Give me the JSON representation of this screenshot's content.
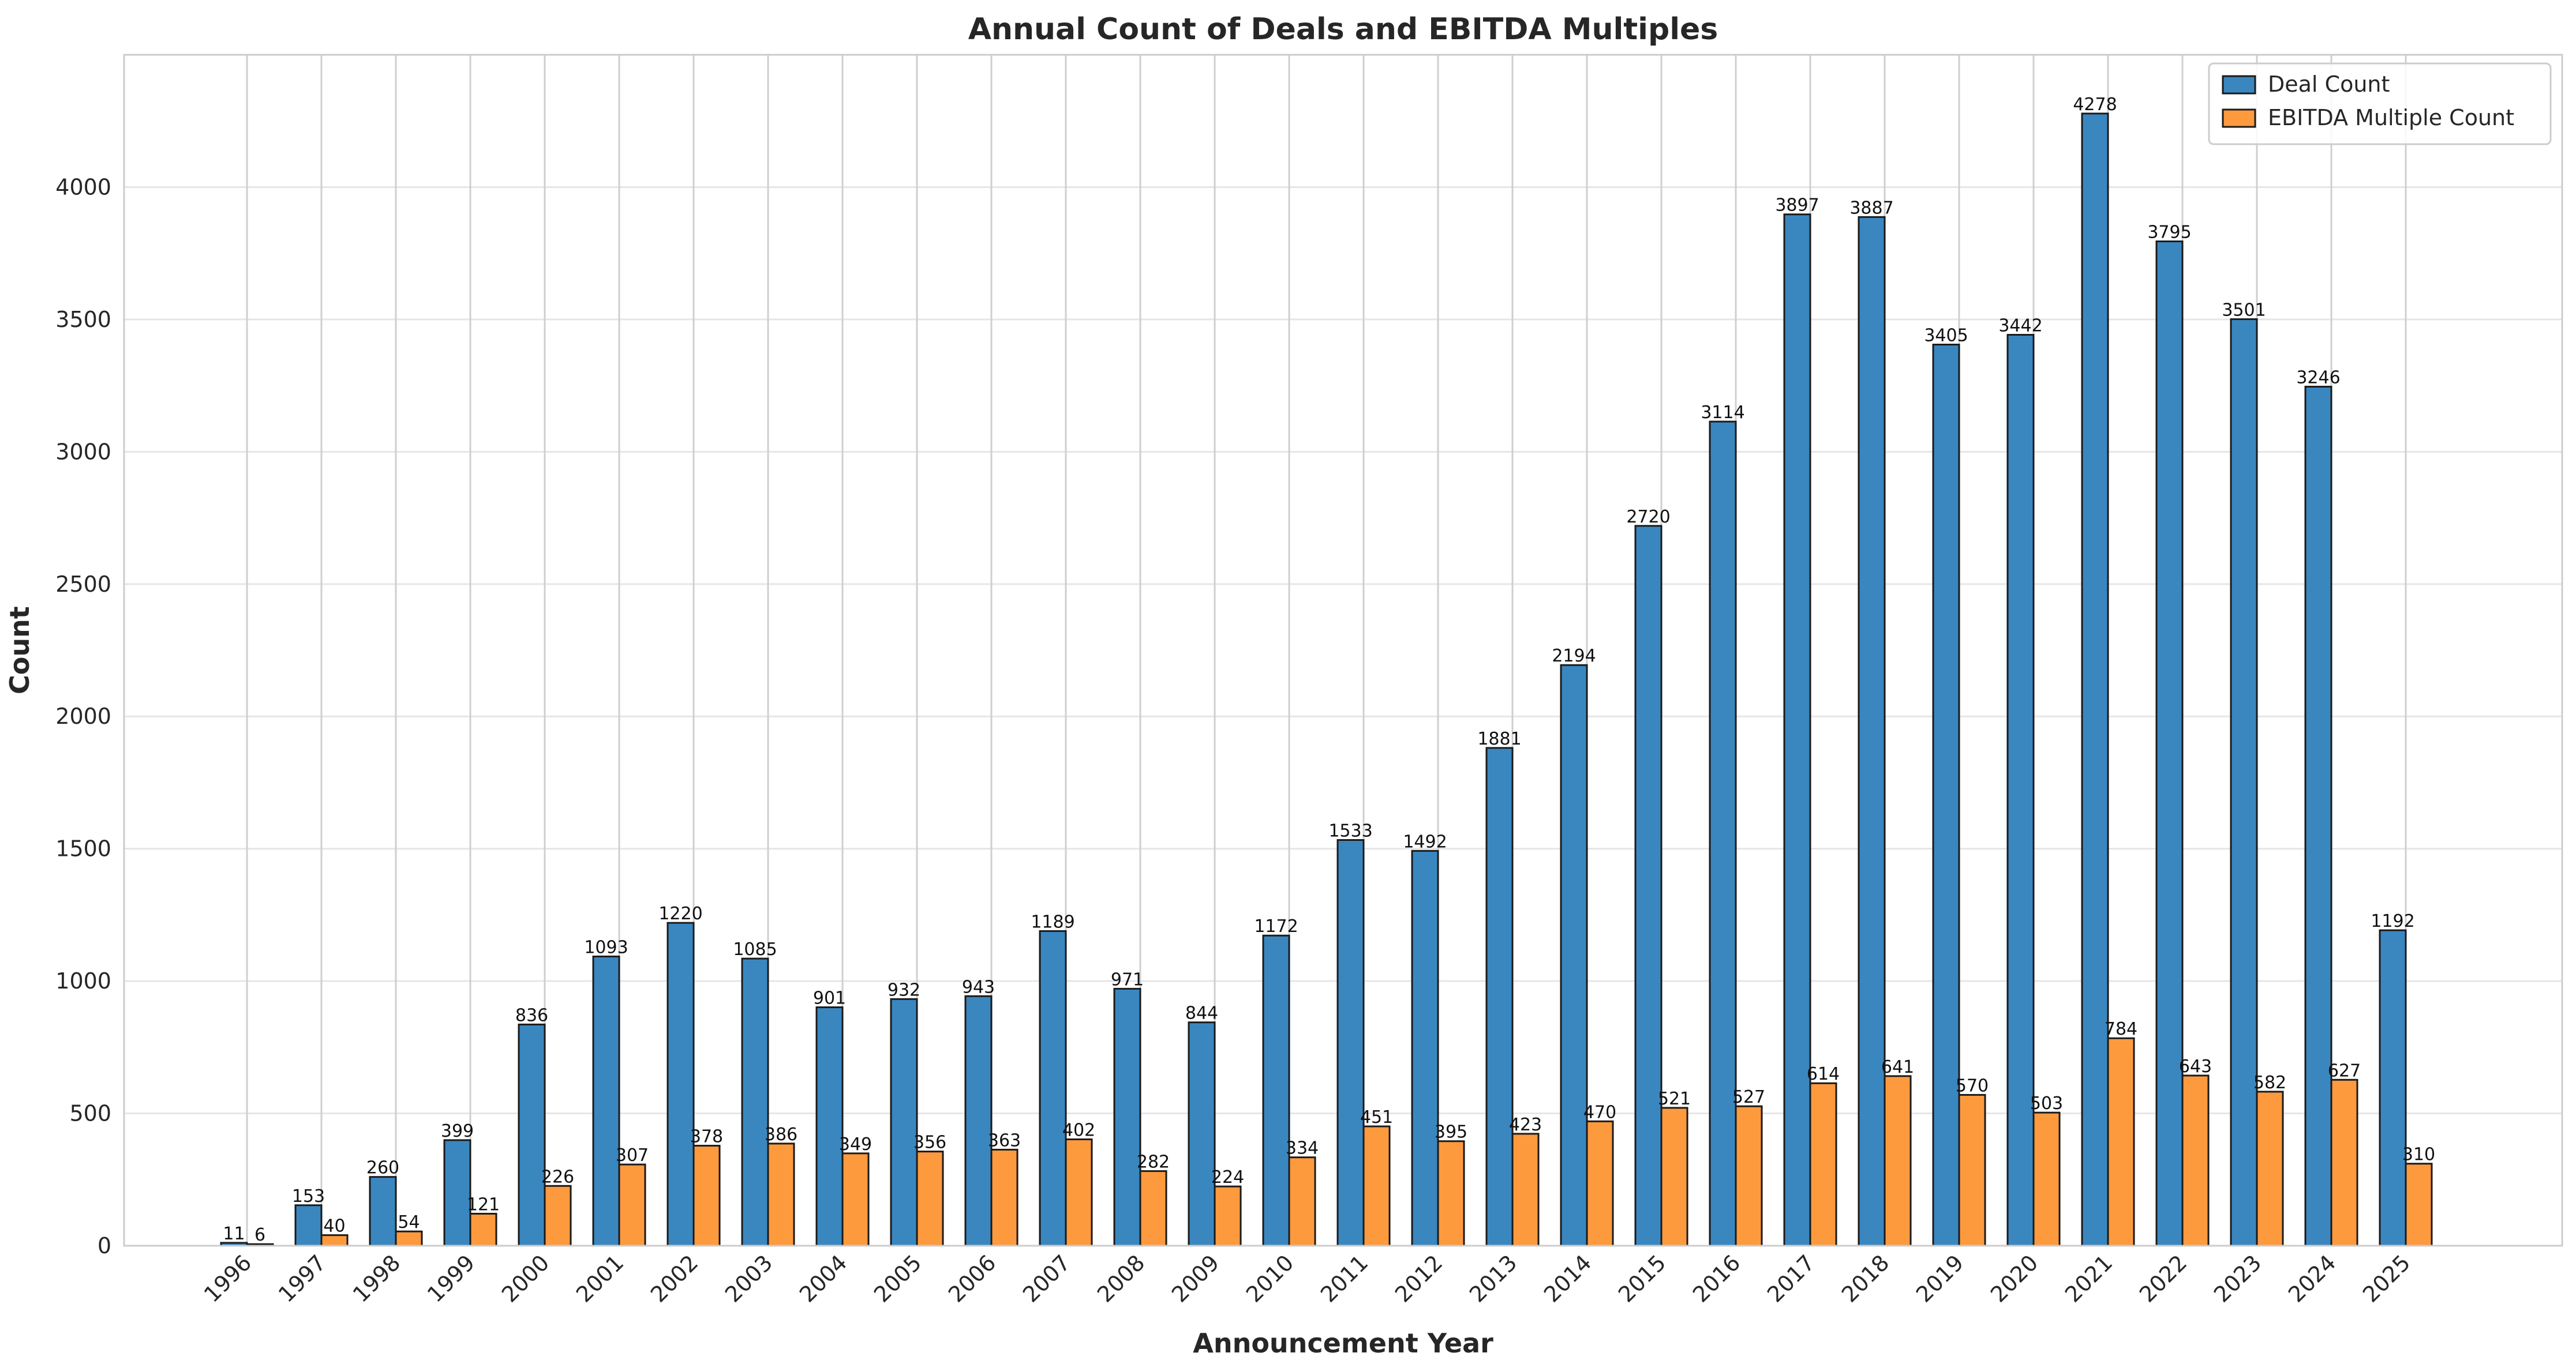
{
  "chart_data": {
    "type": "bar",
    "title": "Annual Count of Deals and EBITDA Multiples",
    "xlabel": "Announcement Year",
    "ylabel": "Count",
    "ylim": [
      0,
      4500
    ],
    "yticks": [
      0,
      500,
      1000,
      1500,
      2000,
      2500,
      3000,
      3500,
      4000
    ],
    "grid": true,
    "legend_position": "top-right",
    "categories": [
      "1996",
      "1997",
      "1998",
      "1999",
      "2000",
      "2001",
      "2002",
      "2003",
      "2004",
      "2005",
      "2006",
      "2007",
      "2008",
      "2009",
      "2010",
      "2011",
      "2012",
      "2013",
      "2014",
      "2015",
      "2016",
      "2017",
      "2018",
      "2019",
      "2020",
      "2021",
      "2022",
      "2023",
      "2024",
      "2025"
    ],
    "series": [
      {
        "name": "Deal Count",
        "color": "#3a87c0",
        "values": [
          11,
          153,
          260,
          399,
          836,
          1093,
          1220,
          1085,
          901,
          932,
          943,
          1189,
          971,
          844,
          1172,
          1533,
          1492,
          1881,
          2194,
          2720,
          3114,
          3897,
          3887,
          3405,
          3442,
          4278,
          3795,
          3501,
          3246,
          1192
        ]
      },
      {
        "name": "EBITDA Multiple Count",
        "color": "#fd9a3e",
        "values": [
          6,
          40,
          54,
          121,
          226,
          307,
          378,
          386,
          349,
          356,
          363,
          402,
          282,
          224,
          334,
          451,
          395,
          423,
          470,
          521,
          527,
          614,
          641,
          570,
          503,
          784,
          643,
          582,
          627,
          310
        ]
      }
    ]
  }
}
